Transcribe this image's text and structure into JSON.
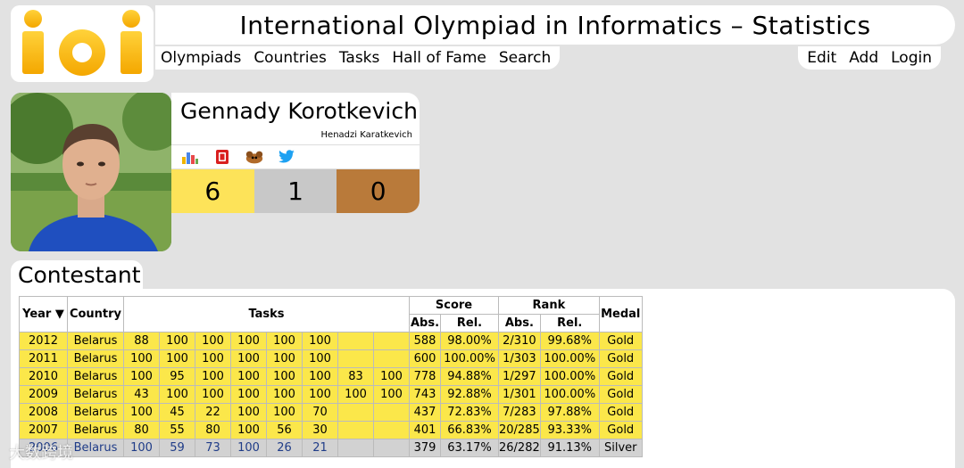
{
  "header": {
    "logo_text": "ioi",
    "title": "International Olympiad in Informatics – Statistics",
    "nav_left": [
      "Olympiads",
      "Countries",
      "Tasks",
      "Hall of Fame",
      "Search"
    ],
    "nav_right": [
      "Edit",
      "Add",
      "Login"
    ]
  },
  "profile": {
    "name": "Gennady Korotkevich",
    "alt_name": "Henadzi Karatkevich",
    "icons": [
      "bar-chart-icon",
      "red-badge-icon",
      "animal-icon",
      "twitter-icon"
    ],
    "medals": {
      "gold": "6",
      "silver": "1",
      "bronze": "0"
    },
    "colors": {
      "gold": "#fde359",
      "silver": "#c8c8c8",
      "bronze": "#b97a3a"
    }
  },
  "section": {
    "title": "Contestant"
  },
  "table": {
    "headers": {
      "year": "Year ▼",
      "country": "Country",
      "tasks": "Tasks",
      "score": "Score",
      "rank": "Rank",
      "medal": "Medal",
      "abs": "Abs.",
      "rel": "Rel.",
      "rank_abs": "Abs.",
      "rank_rel": "Rel."
    },
    "rows": [
      {
        "year": "2012",
        "country": "Belarus",
        "tasks": [
          "88",
          "100",
          "100",
          "100",
          "100",
          "100",
          "",
          ""
        ],
        "abs": "588",
        "rel": "98.00%",
        "rank_abs": "2/310",
        "rank_rel": "99.68%",
        "medal": "Gold",
        "kind": "gold"
      },
      {
        "year": "2011",
        "country": "Belarus",
        "tasks": [
          "100",
          "100",
          "100",
          "100",
          "100",
          "100",
          "",
          ""
        ],
        "abs": "600",
        "rel": "100.00%",
        "rank_abs": "1/303",
        "rank_rel": "100.00%",
        "medal": "Gold",
        "kind": "gold"
      },
      {
        "year": "2010",
        "country": "Belarus",
        "tasks": [
          "100",
          "95",
          "100",
          "100",
          "100",
          "100",
          "83",
          "100"
        ],
        "abs": "778",
        "rel": "94.88%",
        "rank_abs": "1/297",
        "rank_rel": "100.00%",
        "medal": "Gold",
        "kind": "gold"
      },
      {
        "year": "2009",
        "country": "Belarus",
        "tasks": [
          "43",
          "100",
          "100",
          "100",
          "100",
          "100",
          "100",
          "100"
        ],
        "abs": "743",
        "rel": "92.88%",
        "rank_abs": "1/301",
        "rank_rel": "100.00%",
        "medal": "Gold",
        "kind": "gold"
      },
      {
        "year": "2008",
        "country": "Belarus",
        "tasks": [
          "100",
          "45",
          "22",
          "100",
          "100",
          "70",
          "",
          ""
        ],
        "abs": "437",
        "rel": "72.83%",
        "rank_abs": "7/283",
        "rank_rel": "97.88%",
        "medal": "Gold",
        "kind": "gold"
      },
      {
        "year": "2007",
        "country": "Belarus",
        "tasks": [
          "80",
          "55",
          "80",
          "100",
          "56",
          "30",
          "",
          ""
        ],
        "abs": "401",
        "rel": "66.83%",
        "rank_abs": "20/285",
        "rank_rel": "93.33%",
        "medal": "Gold",
        "kind": "gold"
      },
      {
        "year": "2006",
        "country": "Belarus",
        "tasks": [
          "100",
          "59",
          "73",
          "100",
          "26",
          "21",
          "",
          ""
        ],
        "abs": "379",
        "rel": "63.17%",
        "rank_abs": "26/282",
        "rank_rel": "91.13%",
        "medal": "Silver",
        "kind": "silver"
      }
    ]
  },
  "watermark": "大数跨境"
}
